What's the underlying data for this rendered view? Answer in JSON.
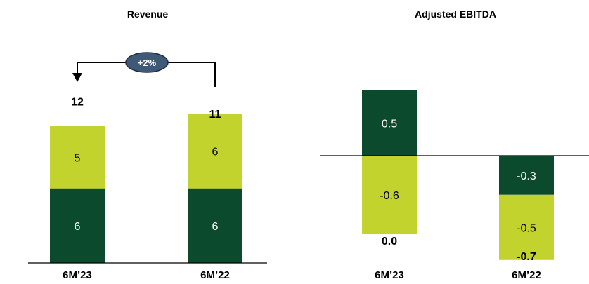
{
  "colors": {
    "dark_green": "#0b4a2c",
    "light_green": "#c3d32d",
    "badge_fill": "#3e5a78",
    "badge_stroke": "#1f2d44"
  },
  "chart_data": [
    {
      "type": "bar",
      "stacked": true,
      "title": "Revenue",
      "categories": [
        "6M’23",
        "6M’22"
      ],
      "series": [
        {
          "values": [
            6,
            6
          ],
          "labels": [
            "6",
            "6"
          ],
          "color": "dark_green"
        },
        {
          "values": [
            5,
            6
          ],
          "labels": [
            "5",
            "6"
          ],
          "color": "light_green"
        }
      ],
      "totals": [
        "12",
        "11"
      ],
      "growth_badge": "+2%",
      "ylim": [
        0,
        12.5
      ],
      "grid": false
    },
    {
      "type": "bar",
      "stacked": true,
      "title": "Adjusted EBITDA",
      "categories": [
        "6M’23",
        "6M’22"
      ],
      "series": [
        {
          "values": [
            0.5,
            -0.3
          ],
          "labels": [
            "0.5",
            "-0.3"
          ],
          "color": "dark_green"
        },
        {
          "values": [
            -0.6,
            -0.5
          ],
          "labels": [
            "-0.6",
            "-0.5"
          ],
          "color": "light_green"
        }
      ],
      "totals": [
        "0.0",
        "-0.7"
      ],
      "ylim": [
        -0.9,
        0.6
      ],
      "grid": false
    }
  ]
}
